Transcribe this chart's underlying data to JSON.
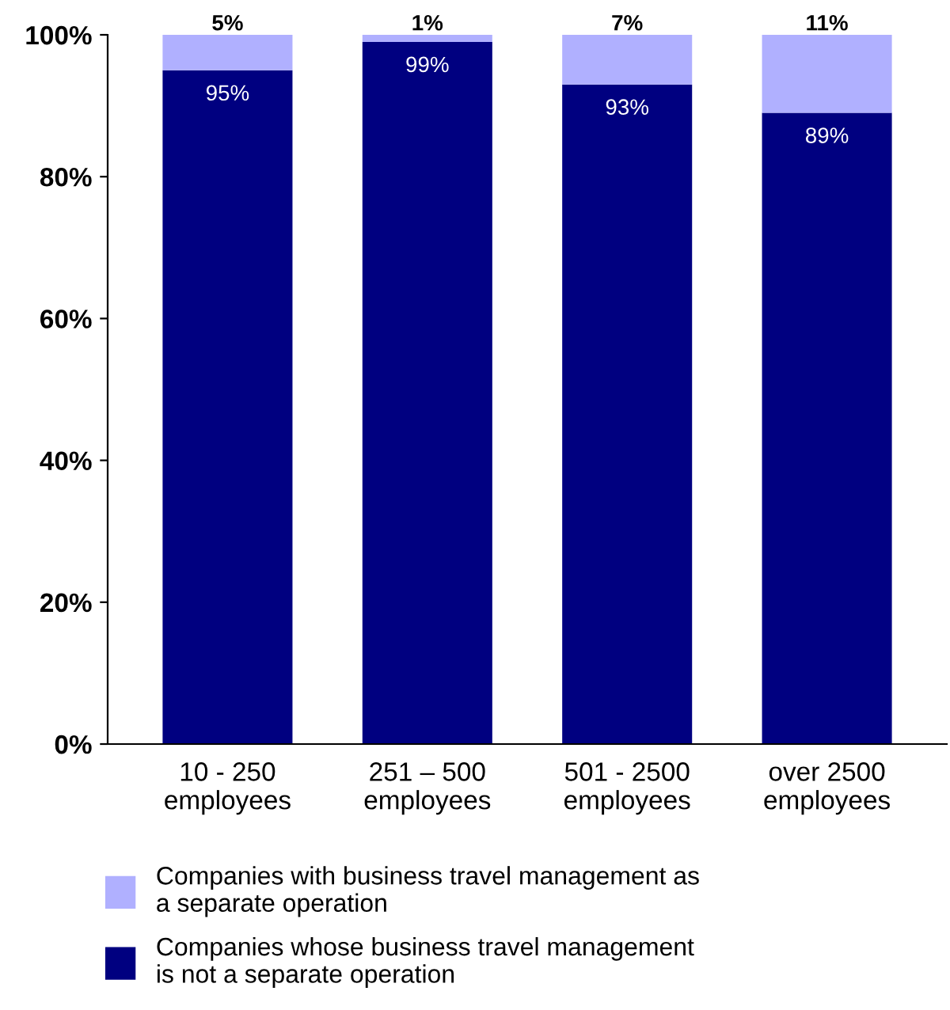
{
  "chart_data": {
    "type": "bar",
    "stacked": true,
    "categories": [
      "10 - 250\nemployees",
      "251 – 500\nemployees",
      "501 - 2500\nemployees",
      "over 2500\nemployees"
    ],
    "series": [
      {
        "name": "Companies whose business travel management\nis not a separate operation",
        "color": "#000080",
        "values": [
          95,
          99,
          93,
          89
        ],
        "value_labels": [
          "95%",
          "99%",
          "93%",
          "89%"
        ]
      },
      {
        "name": "Companies with business travel management as\na separate operation",
        "color": "#b0b0ff",
        "values": [
          5,
          1,
          7,
          11
        ],
        "value_labels": [
          "5%",
          "1%",
          "7%",
          "11%"
        ]
      }
    ],
    "ylim": [
      0,
      100
    ],
    "yticks": [
      {
        "value": 0,
        "label": "0%"
      },
      {
        "value": 20,
        "label": "20%"
      },
      {
        "value": 40,
        "label": "40%"
      },
      {
        "value": 60,
        "label": "60%"
      },
      {
        "value": 80,
        "label": "80%"
      },
      {
        "value": 100,
        "label": "100%"
      }
    ],
    "grid": false,
    "legend": "bottom"
  }
}
